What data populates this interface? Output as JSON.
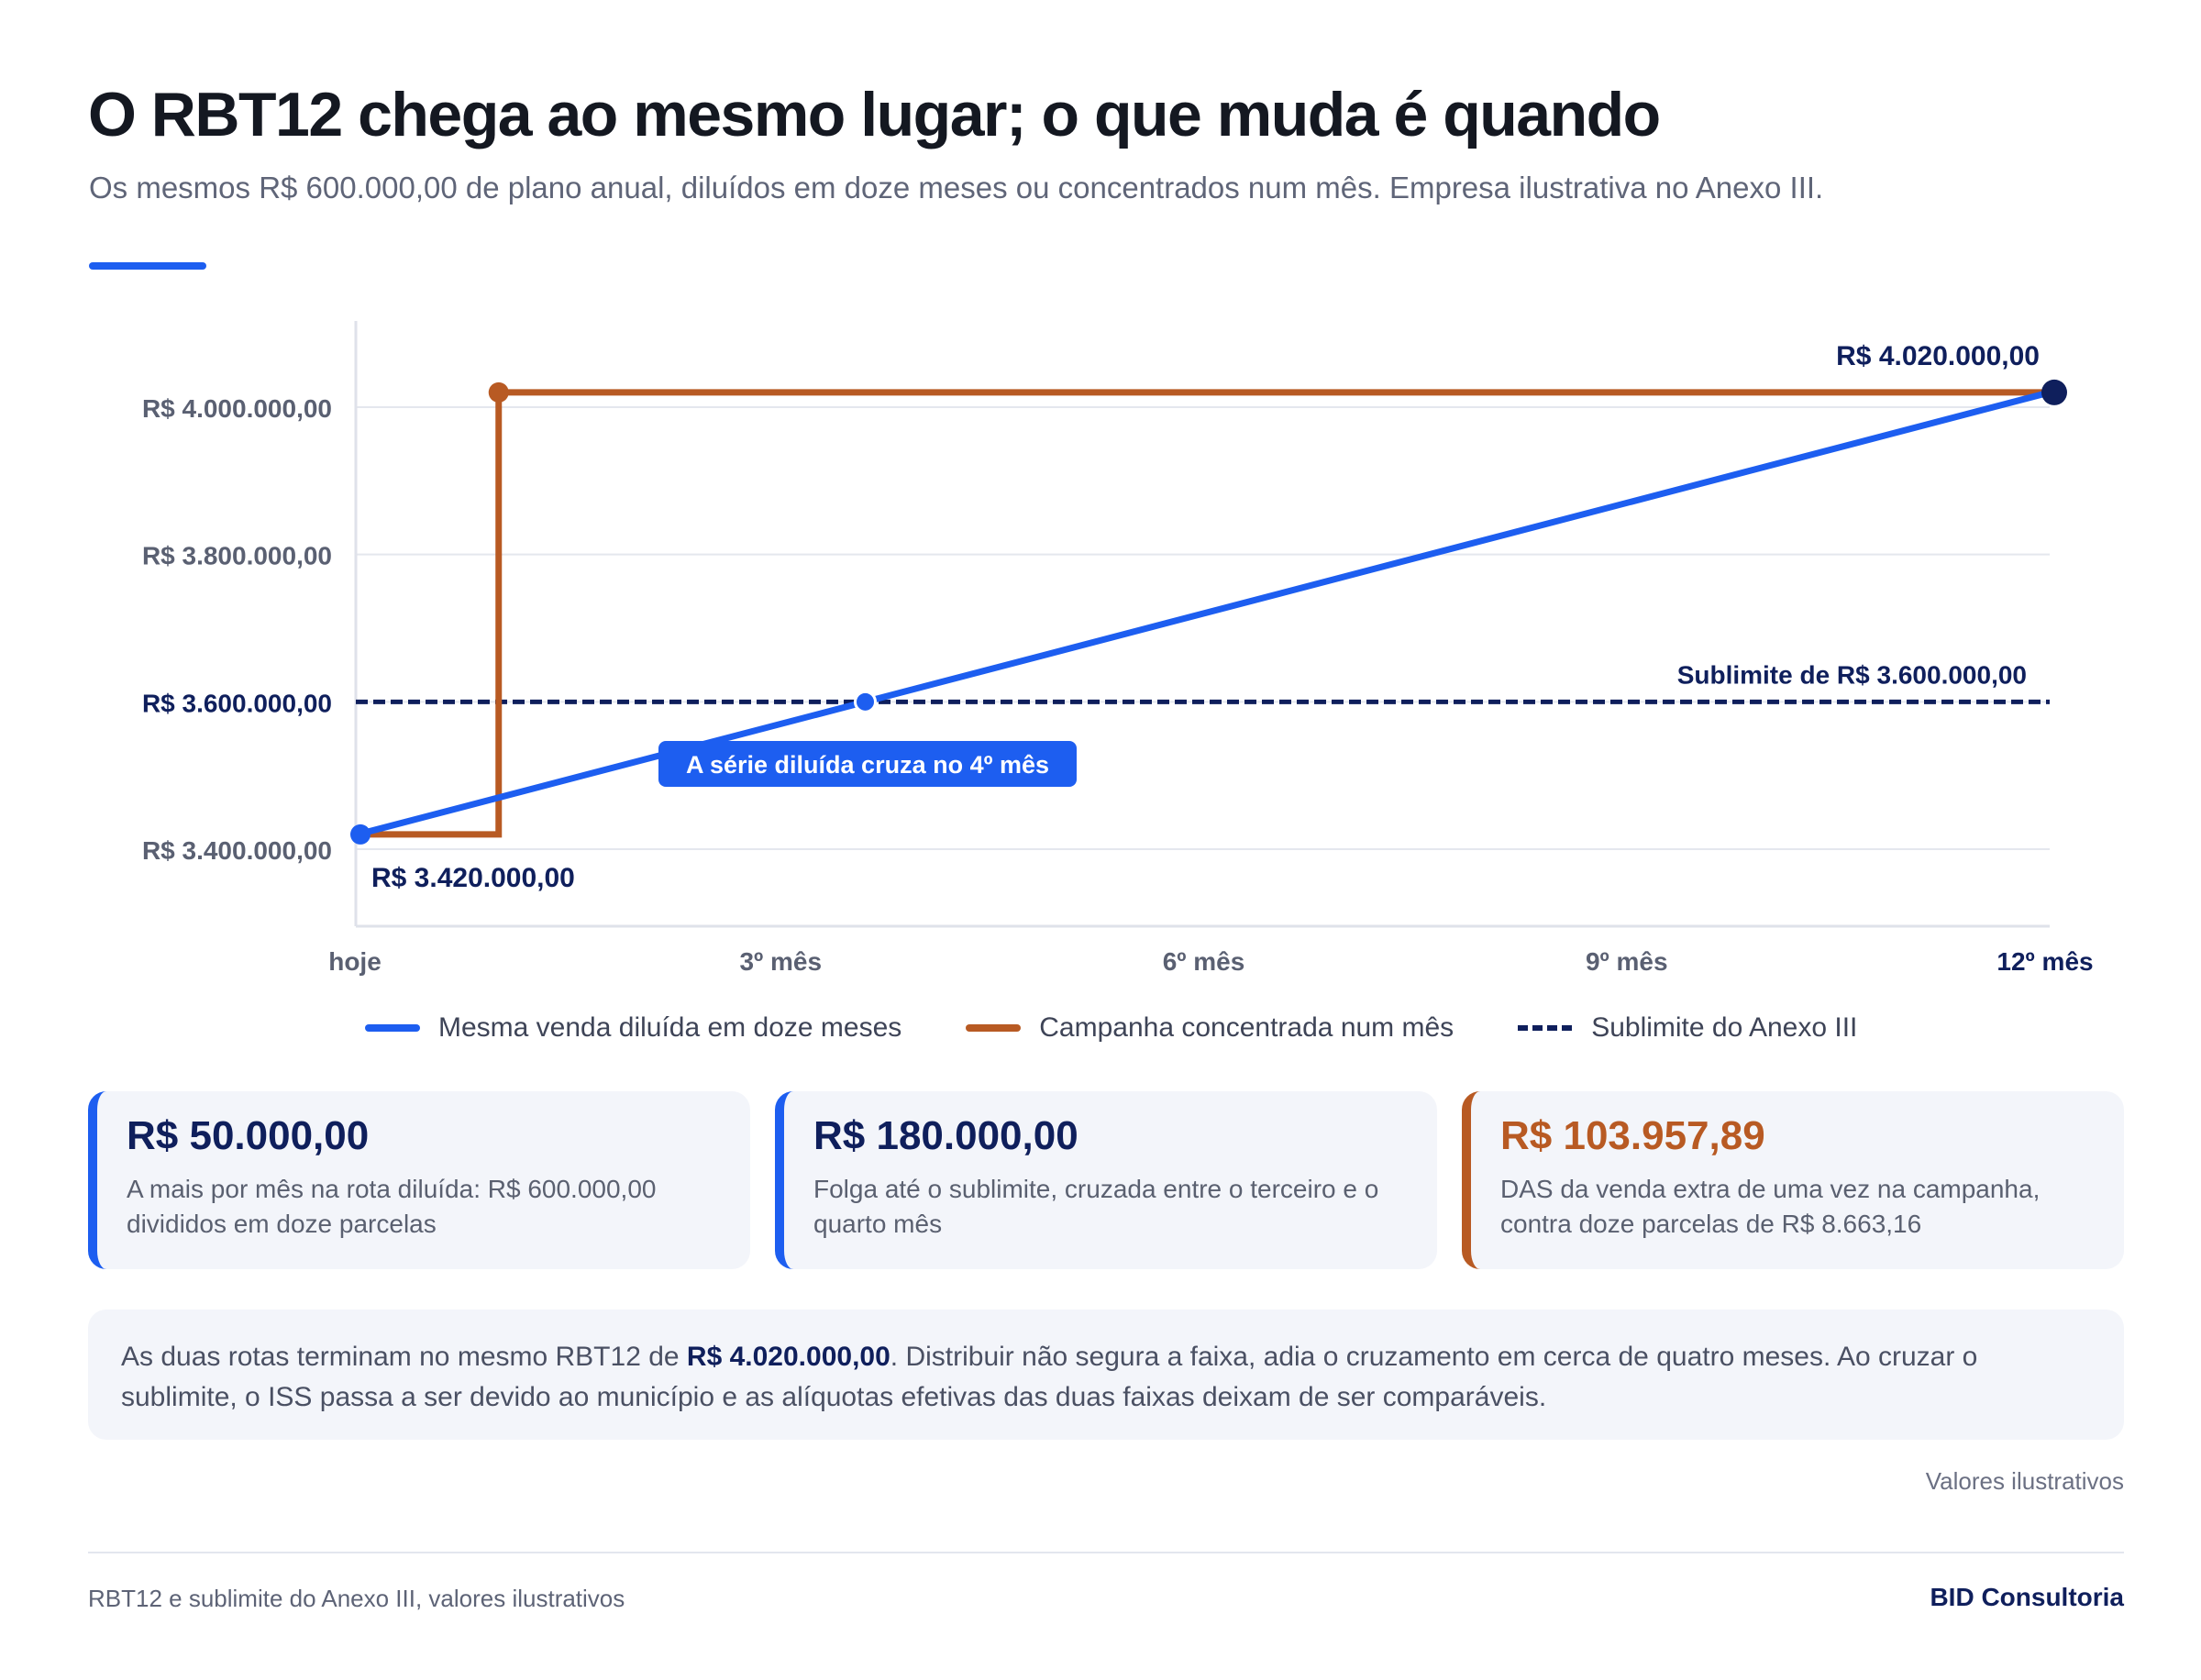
{
  "header": {
    "title": "O RBT12 chega ao mesmo lugar; o que muda é quando",
    "subtitle": "Os mesmos R$ 600.000,00 de plano anual, diluídos em doze meses ou concentrados num mês. Empresa ilustrativa no Anexo III."
  },
  "chart_data": {
    "type": "line",
    "title": "",
    "xlabel": "",
    "ylabel": "",
    "x_ticks": [
      {
        "month": 0,
        "label": "hoje"
      },
      {
        "month": 3,
        "label": "3º mês"
      },
      {
        "month": 6,
        "label": "6º mês"
      },
      {
        "month": 9,
        "label": "9º mês"
      },
      {
        "month": 12,
        "label": "12º mês"
      }
    ],
    "y_ticks": [
      {
        "value": 3400000,
        "label": "R$ 3.400.000,00"
      },
      {
        "value": 3600000,
        "label": "R$ 3.600.000,00"
      },
      {
        "value": 3800000,
        "label": "R$ 3.800.000,00"
      },
      {
        "value": 4000000,
        "label": "R$ 4.000.000,00"
      }
    ],
    "xlim": [
      0,
      12
    ],
    "ylim": [
      3300000,
      4130000
    ],
    "grid": true,
    "series": [
      {
        "name": "Mesma venda diluída em doze meses",
        "color": "#1d5ef0",
        "x": [
          0,
          12
        ],
        "values": [
          3420000,
          4020000
        ]
      },
      {
        "name": "Campanha concentrada num mês",
        "color": "#b85a23",
        "x": [
          0,
          1,
          1,
          12
        ],
        "values": [
          3420000,
          3420000,
          4020000,
          4020000
        ]
      }
    ],
    "reference_line": {
      "name": "Sublimite do Anexo III",
      "value": 3600000,
      "label": "Sublimite de R$ 3.600.000,00",
      "color": "#0f1f5c"
    },
    "crossing_point": {
      "month": 3.6,
      "value": 3600000
    },
    "annotations": {
      "start_label": "R$ 3.420.000,00",
      "end_label": "R$ 4.020.000,00",
      "crossing_label": "A série diluída cruza no 4º mês"
    }
  },
  "legend": {
    "diluted": "Mesma venda diluída em doze meses",
    "campaign": "Campanha concentrada num mês",
    "sublimit": "Sublimite do Anexo III"
  },
  "cards": [
    {
      "value": "R$ 50.000,00",
      "desc": "A mais por mês na rota diluída: R$ 600.000,00 divididos em doze parcelas"
    },
    {
      "value": "R$ 180.000,00",
      "desc": "Folga até o sublimite, cruzada entre o terceiro e o quarto mês"
    },
    {
      "value": "R$ 103.957,89",
      "desc": "DAS da venda extra de uma vez na campanha, contra doze parcelas de R$ 8.663,16"
    }
  ],
  "note": {
    "before": "As duas rotas terminam no mesmo RBT12 de ",
    "highlight": "R$ 4.020.000,00",
    "after": ". Distribuir não segura a faixa, adia o cruzamento em cerca de quatro meses. Ao cruzar o sublimite, o ISS passa a ser devido ao município e as alíquotas efetivas das duas faixas deixam de ser comparáveis."
  },
  "illustrative": "Valores ilustrativos",
  "footer": {
    "left": "RBT12 e sublimite do Anexo III, valores ilustrativos",
    "right": "BID Consultoria"
  }
}
